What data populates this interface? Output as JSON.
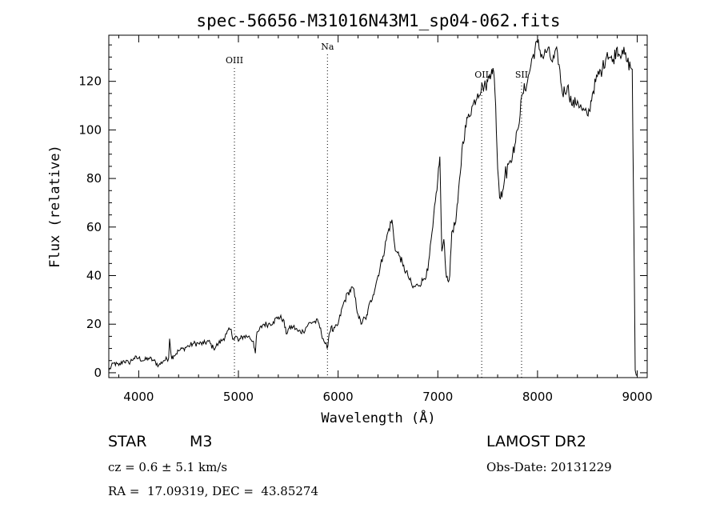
{
  "chart_data": {
    "type": "line",
    "title": "spec-56656-M31016N43M1_sp04-062.fits",
    "xlabel": "Wavelength (Å)",
    "ylabel": "Flux (relative)",
    "xlim": [
      3700,
      9100
    ],
    "ylim": [
      -2,
      139
    ],
    "x_ticks": [
      4000,
      5000,
      6000,
      7000,
      8000,
      9000
    ],
    "y_ticks": [
      0,
      20,
      40,
      60,
      80,
      100,
      120
    ],
    "grid": false,
    "series": [
      {
        "x": [
          3700,
          3750,
          3800,
          3850,
          3900,
          3950,
          4000,
          4050,
          4100,
          4150,
          4200,
          4250,
          4300,
          4310,
          4330,
          4350,
          4400,
          4450,
          4500,
          4550,
          4600,
          4650,
          4700,
          4750,
          4800,
          4850,
          4880,
          4920,
          4950,
          4980,
          5000,
          5020,
          5050,
          5100,
          5150,
          5170,
          5180,
          5200,
          5250,
          5300,
          5350,
          5400,
          5450,
          5480,
          5500,
          5550,
          5600,
          5650,
          5700,
          5750,
          5800,
          5850,
          5870,
          5890,
          5910,
          5930,
          5950,
          6000,
          6050,
          6100,
          6150,
          6200,
          6230,
          6250,
          6280,
          6300,
          6350,
          6400,
          6450,
          6500,
          6540,
          6560,
          6580,
          6620,
          6650,
          6700,
          6750,
          6800,
          6850,
          6900,
          6950,
          7000,
          7020,
          7040,
          7050,
          7060,
          7080,
          7100,
          7120,
          7140,
          7180,
          7200,
          7250,
          7300,
          7350,
          7400,
          7450,
          7480,
          7500,
          7520,
          7540,
          7560,
          7580,
          7600,
          7610,
          7620,
          7650,
          7670,
          7680,
          7690,
          7700,
          7720,
          7750,
          7780,
          7800,
          7850,
          7900,
          7950,
          8000,
          8050,
          8100,
          8150,
          8200,
          8250,
          8300,
          8350,
          8400,
          8450,
          8500,
          8520,
          8550,
          8600,
          8650,
          8700,
          8750,
          8800,
          8820,
          8850,
          8900,
          8950,
          8980,
          8990,
          9000
        ],
        "y": [
          1,
          4,
          3,
          5,
          4,
          6,
          6,
          5,
          6,
          5,
          3,
          5,
          6,
          14,
          6,
          7,
          9,
          10,
          11,
          12,
          12,
          12,
          13,
          10,
          12,
          14,
          16,
          18,
          14,
          15,
          13,
          14,
          15,
          15,
          13,
          8,
          15,
          17,
          20,
          20,
          21,
          23,
          22,
          16,
          18,
          19,
          17,
          17,
          20,
          21,
          21,
          14,
          12,
          10,
          16,
          19,
          17,
          20,
          28,
          33,
          35,
          24,
          20,
          22,
          22,
          26,
          32,
          40,
          48,
          58,
          63,
          55,
          50,
          48,
          44,
          40,
          35,
          36,
          38,
          42,
          60,
          80,
          89,
          50,
          52,
          55,
          42,
          38,
          40,
          58,
          62,
          70,
          95,
          105,
          110,
          115,
          118,
          118,
          120,
          123,
          125,
          124,
          110,
          84,
          79,
          72,
          75,
          80,
          85,
          80,
          86,
          87,
          90,
          95,
          100,
          115,
          120,
          130,
          136,
          130,
          133,
          128,
          132,
          115,
          118,
          110,
          112,
          108,
          106,
          108,
          115,
          122,
          125,
          132,
          128,
          134,
          131,
          133,
          128,
          125,
          1,
          -1,
          -1
        ]
      }
    ],
    "emission_lines": [
      {
        "label": "OIII",
        "x": 4960
      },
      {
        "label": "Na",
        "x": 5893
      },
      {
        "label": "OII",
        "x": 7440
      },
      {
        "label": "SII",
        "x": 7840
      }
    ]
  },
  "info": {
    "object_type": "STAR",
    "subclass": "M3",
    "survey": "LAMOST DR2",
    "velocity": "cz = 0.6 ± 5.1 km/s",
    "obs_date": "Obs-Date: 20131229",
    "coords": "RA =  17.09319, DEC =  43.85274"
  }
}
